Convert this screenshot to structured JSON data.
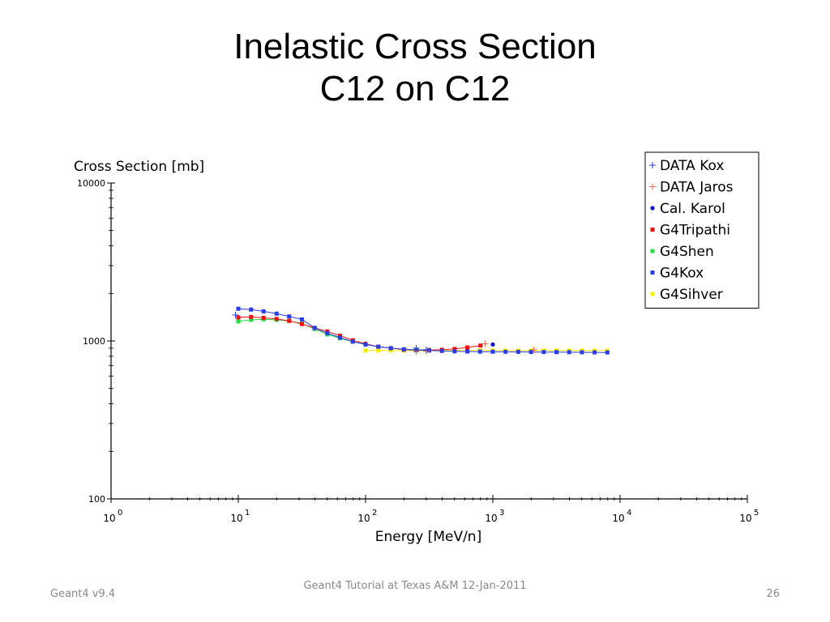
{
  "slide": {
    "title_line1": "Inelastic Cross Section",
    "title_line2": "C12 on C12",
    "footer_left": "Geant4 v9.4",
    "footer_center": "Geant4 Tutorial at Texas A&M 12-Jan-2011",
    "footer_right": "26"
  },
  "chart_data": {
    "type": "line",
    "xlabel": "Energy [MeV/n]",
    "ylabel": "Cross Section [mb]",
    "x_scale": "log",
    "y_scale": "log",
    "xlim": [
      1,
      100000
    ],
    "ylim": [
      100,
      10000
    ],
    "x_ticks": [
      {
        "base": "10",
        "exp": "0"
      },
      {
        "base": "10",
        "exp": "1"
      },
      {
        "base": "10",
        "exp": "2"
      },
      {
        "base": "10",
        "exp": "3"
      },
      {
        "base": "10",
        "exp": "4"
      },
      {
        "base": "10",
        "exp": "5"
      }
    ],
    "y_ticks": [
      "100",
      "1000",
      "10000"
    ],
    "grid": false,
    "legend_position": "top-right",
    "series": [
      {
        "name": "DATA Kox",
        "color": "#1f3fd8",
        "marker": "plus",
        "line": false,
        "x": [
          9.5,
          250,
          300
        ],
        "y": [
          1460,
          900,
          880
        ]
      },
      {
        "name": "DATA Jaros",
        "color": "#e86a4a",
        "marker": "plus",
        "line": false,
        "x": [
          250,
          300,
          870,
          2100
        ],
        "y": [
          860,
          860,
          960,
          880
        ]
      },
      {
        "name": "Cal. Karol",
        "color": "#0a0ad8",
        "marker": "dot",
        "line": false,
        "x": [
          1000
        ],
        "y": [
          950
        ]
      },
      {
        "name": "G4Tripathi",
        "color": "#ee1111",
        "marker": "square",
        "line": true,
        "x": [
          10,
          12.6,
          15.8,
          20,
          25.1,
          31.6,
          39.8,
          50.1,
          63.1,
          79.4,
          100,
          126,
          158,
          200,
          251,
          316,
          398,
          501,
          631,
          800
        ],
        "y": [
          1410,
          1420,
          1400,
          1380,
          1340,
          1280,
          1210,
          1150,
          1080,
          1010,
          960,
          920,
          900,
          880,
          875,
          875,
          880,
          890,
          910,
          935
        ]
      },
      {
        "name": "G4Shen",
        "color": "#22dd44",
        "marker": "square",
        "line": true,
        "x": [
          10,
          12.6,
          15.8,
          20,
          25.1,
          31.6,
          39.8,
          50.1,
          63.1,
          79.4,
          100,
          126,
          158,
          200,
          251,
          316
        ],
        "y": [
          1330,
          1360,
          1370,
          1360,
          1340,
          1290,
          1190,
          1100,
          1040,
          990,
          950,
          920,
          900,
          885,
          880,
          878
        ]
      },
      {
        "name": "G4Kox",
        "color": "#2a3be8",
        "marker": "square",
        "line": true,
        "x": [
          10,
          12.6,
          15.8,
          20,
          25.1,
          31.6,
          39.8,
          50.1,
          63.1,
          79.4,
          100,
          126,
          158,
          200,
          251,
          316,
          398,
          501,
          631,
          794,
          1000,
          1259,
          1585,
          1995,
          2512,
          3162,
          3981,
          5012,
          6310,
          7943
        ],
        "y": [
          1600,
          1580,
          1540,
          1490,
          1430,
          1370,
          1210,
          1120,
          1050,
          990,
          950,
          920,
          900,
          885,
          875,
          870,
          865,
          860,
          858,
          856,
          855,
          854,
          853,
          852,
          851,
          850,
          849,
          848,
          847,
          846
        ]
      },
      {
        "name": "G4Sihver",
        "color": "#f5f000",
        "marker": "square",
        "line": true,
        "x": [
          100,
          126,
          158,
          200,
          251,
          316,
          398,
          501,
          631,
          794,
          1000,
          1259,
          1585,
          1995,
          2512,
          3162,
          3981,
          5012,
          6310,
          7943
        ],
        "y": [
          870,
          870,
          870,
          870,
          870,
          870,
          870,
          870,
          870,
          870,
          870,
          870,
          870,
          870,
          870,
          870,
          870,
          870,
          870,
          870
        ]
      }
    ]
  }
}
